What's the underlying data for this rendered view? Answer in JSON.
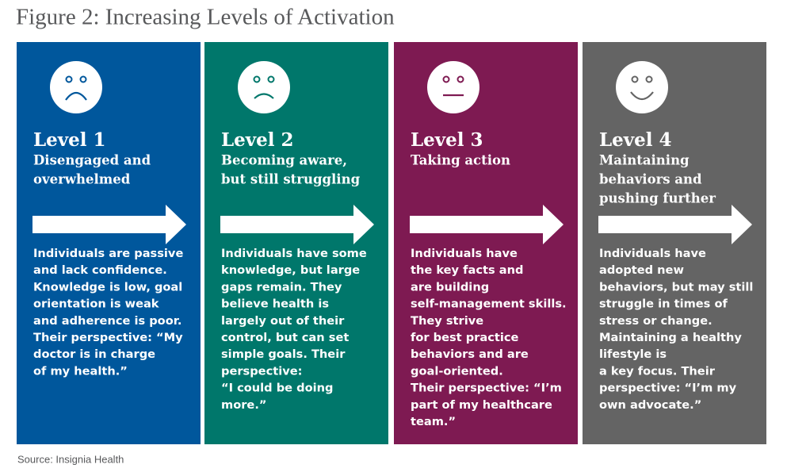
{
  "header": {
    "title": "Figure 2: Increasing Levels of Activation"
  },
  "panels": [
    {
      "level": "Level 1",
      "subtitle": [
        "Disengaged and",
        "overwhelmed"
      ],
      "description": [
        "Individuals are passive",
        "and lack confidence.",
        "Knowledge is low, goal",
        "orientation is weak",
        "and adherence is poor.",
        "Their perspective: “My",
        "doctor is in charge",
        "of my health.”"
      ]
    },
    {
      "level": "Level 2",
      "subtitle": [
        "Becoming aware,",
        "but still struggling"
      ],
      "description": [
        "Individuals have some",
        "knowledge, but large",
        "gaps remain. They",
        "believe health is",
        "largely out of their",
        "control, but can set",
        "simple goals. Their",
        "perspective:",
        "“I could be doing",
        "more.”"
      ]
    },
    {
      "level": "Level 3",
      "subtitle": [
        "Taking action"
      ],
      "description": [
        "Individuals have",
        "the key facts and",
        "are building",
        "self-management skills.",
        "They strive",
        "for best practice",
        "behaviors and are",
        "goal-oriented.",
        "Their perspective: “I’m",
        "part of my healthcare",
        "team.”"
      ]
    },
    {
      "level": "Level 4",
      "subtitle": [
        "Maintaining",
        "behaviors and",
        "pushing further"
      ],
      "description": [
        "Individuals have",
        "adopted new",
        "behaviors, but may still",
        "struggle in times of",
        "stress or change.",
        "Maintaining a healthy",
        "lifestyle is",
        "a key focus. Their",
        "perspective: “I’m my",
        "own advocate.”"
      ]
    }
  ],
  "footer": {
    "source": "Source: Insignia Health"
  }
}
